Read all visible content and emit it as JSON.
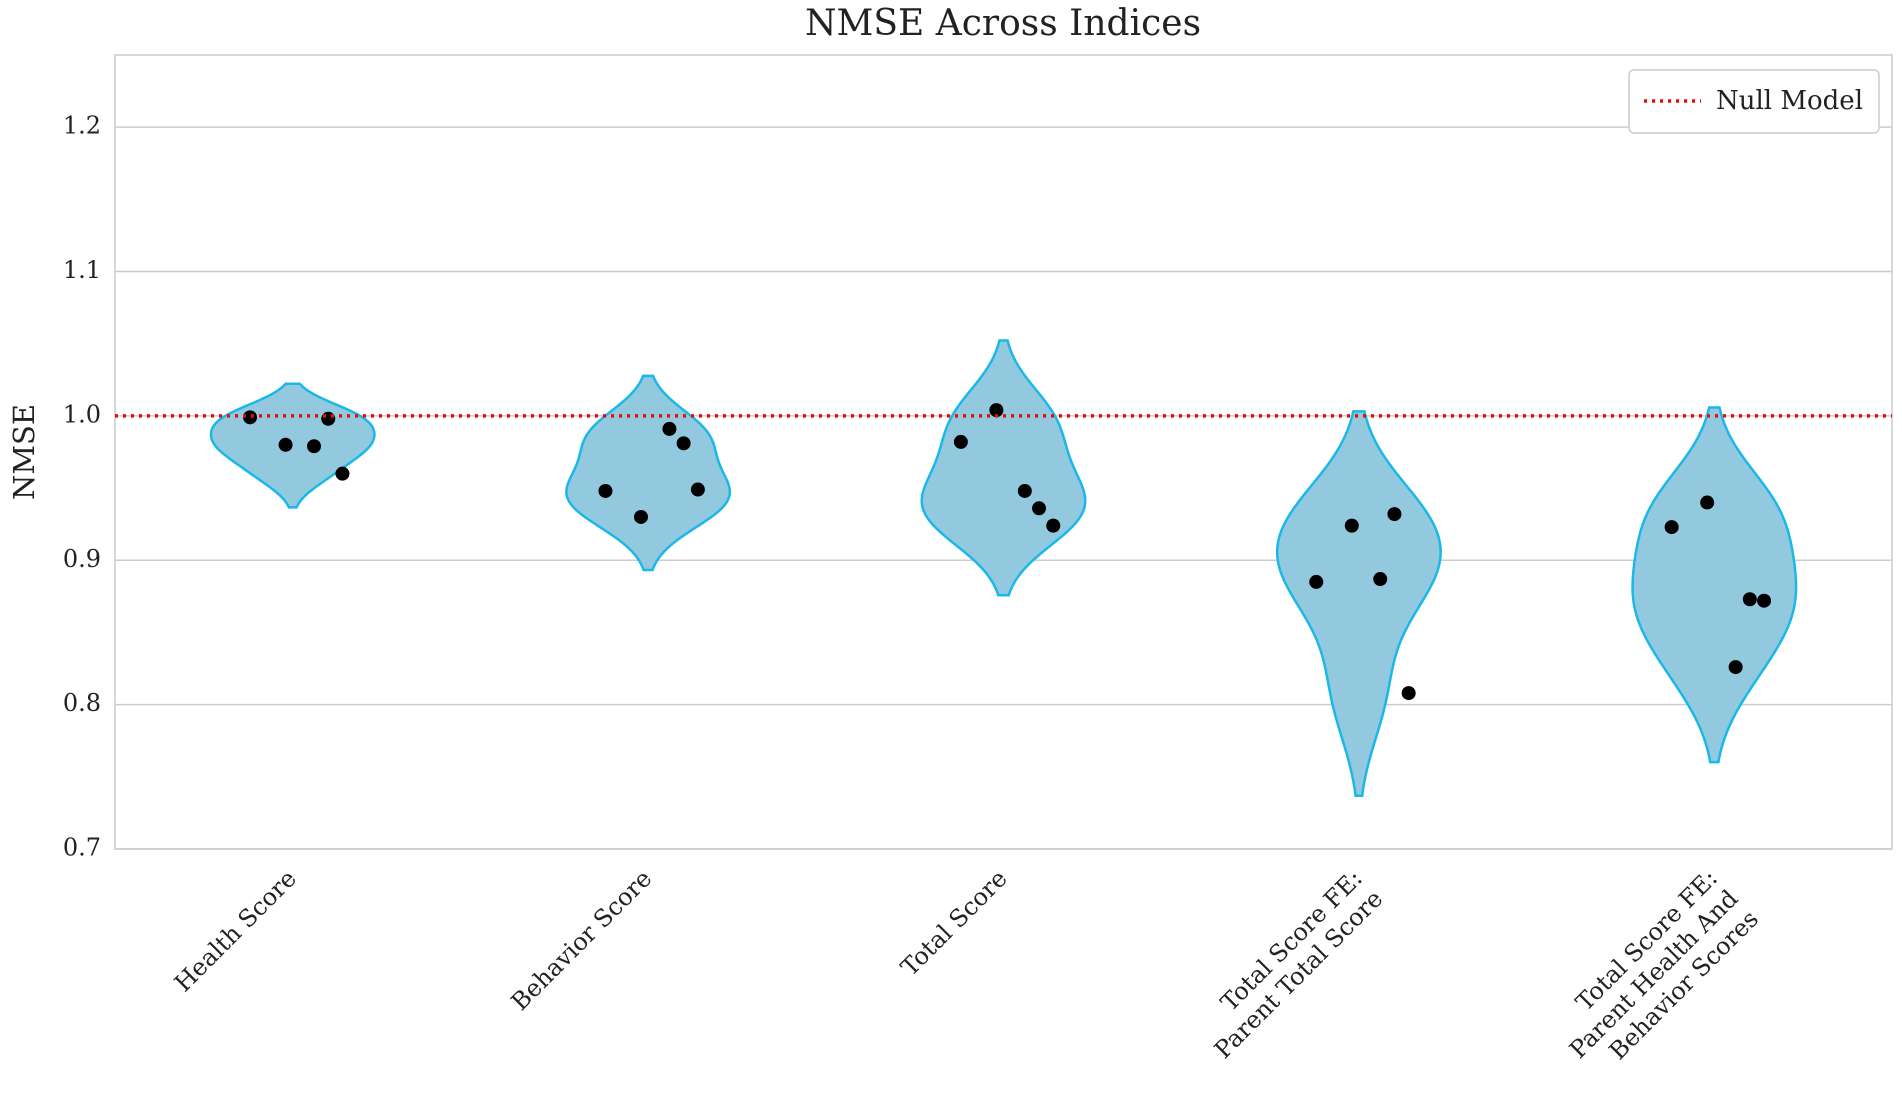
{
  "chart_data": {
    "type": "violin",
    "title": "NMSE Across Indices",
    "ylabel": "NMSE",
    "categories": [
      "Health Score",
      "Behavior Score",
      "Total Score",
      "Total Score FE:\nParent Total Score",
      "Total Score FE:\nParent Health And\nBehavior Scores"
    ],
    "values": [
      [
        0.999,
        0.979,
        0.98,
        0.998,
        0.96
      ],
      [
        0.948,
        0.991,
        0.93,
        0.981,
        0.949
      ],
      [
        0.982,
        0.948,
        1.004,
        0.936,
        0.924
      ],
      [
        0.885,
        0.887,
        0.924,
        0.932,
        0.808
      ],
      [
        0.923,
        0.826,
        0.94,
        0.873,
        0.872
      ]
    ],
    "color": "#93c9de",
    "edgecolor": "#1ab8e8",
    "point_color": "#000000",
    "ylim": [
      0.7,
      1.25
    ],
    "yticks": [
      0.7,
      0.8,
      0.9,
      {
        "value": 1,
        "label": "1.0"
      },
      1.1,
      1.2
    ],
    "grid": true,
    "reference_line": {
      "name": "Null Model",
      "value": 1,
      "color": "#e3100c"
    },
    "legend": "upper right"
  }
}
